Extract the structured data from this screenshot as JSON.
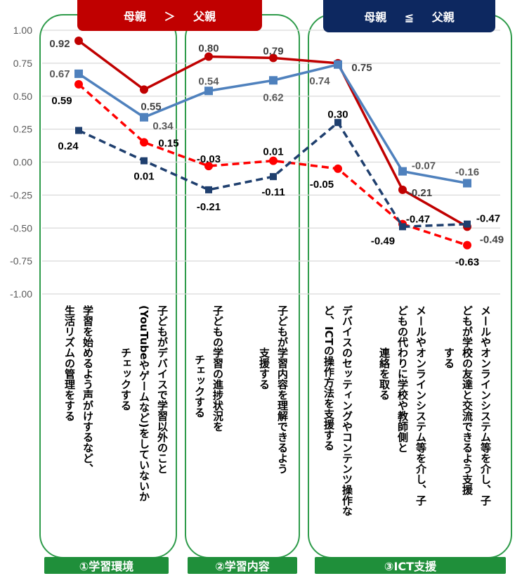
{
  "banners": {
    "left": "母親 ＞ 父親",
    "right": "母親 ≦ 父親",
    "left_color": "#c00000",
    "right_color": "#0d2860"
  },
  "groups": [
    {
      "label": "①学習環境"
    },
    {
      "label": "②学習内容"
    },
    {
      "label": "③ICT支援"
    }
  ],
  "chart_data": {
    "type": "line",
    "ylim": [
      -1.0,
      1.0
    ],
    "yticks": [
      "1.00",
      "0.75",
      "0.50",
      "0.25",
      "0.00",
      "-0.25",
      "-0.50",
      "-0.75",
      "-1.00"
    ],
    "grid": true,
    "categories": [
      [
        "学習を始めるよう声がけするなど、",
        "生活リズムの管理をする"
      ],
      [
        "子どもがデバイスで学習以外のこと",
        "(YouTubeやゲームなど)をしていないか",
        "チェックする"
      ],
      [
        "子どもの学習の進捗状況を",
        "チェックする"
      ],
      [
        "子どもが学習内容を理解できるよう",
        "支援する"
      ],
      [
        "デバイスのセッティングやコンテンツ操作な",
        "ど、ICTの操作方法を支援する"
      ],
      [
        "メールやオンラインシステム等を介し、子",
        "どもの代わりに学校や教師側と",
        "連絡を取る"
      ],
      [
        "メールやオンラインシステム等を介し、子",
        "どもが学校の友達と交流できるよう支援",
        "する"
      ]
    ],
    "series": [
      {
        "color": "#c00000",
        "style": "solid",
        "marker": "circle",
        "values": [
          0.92,
          0.55,
          0.8,
          0.79,
          0.75,
          -0.21,
          -0.49
        ],
        "labels": [
          "0.92",
          "0.55",
          "0.80",
          "0.79",
          "0.75",
          "-0.21",
          "-0.49"
        ]
      },
      {
        "color": "#4f81bd",
        "style": "solid",
        "marker": "square",
        "values": [
          0.67,
          0.34,
          0.54,
          0.62,
          0.74,
          -0.07,
          -0.16
        ],
        "labels": [
          "0.67",
          "0.34",
          "0.54",
          "0.62",
          "0.74",
          "-0.07",
          "-0.16"
        ]
      },
      {
        "color": "#ff0000",
        "style": "dashed",
        "marker": "circle",
        "values": [
          0.59,
          0.15,
          -0.03,
          0.01,
          -0.05,
          -0.47,
          -0.63
        ],
        "labels": [
          "0.59",
          "0.15",
          "-0.03",
          "0.01",
          "-0.05",
          "-0.47",
          "-0.63"
        ]
      },
      {
        "color": "#1f3f6e",
        "style": "dashed",
        "marker": "x",
        "values": [
          0.24,
          0.01,
          -0.21,
          -0.11,
          0.3,
          -0.49,
          -0.47
        ],
        "labels": [
          "0.24",
          "0.01",
          "-0.21",
          "-0.11",
          "0.30",
          "-0.49",
          "-0.47"
        ]
      }
    ]
  }
}
